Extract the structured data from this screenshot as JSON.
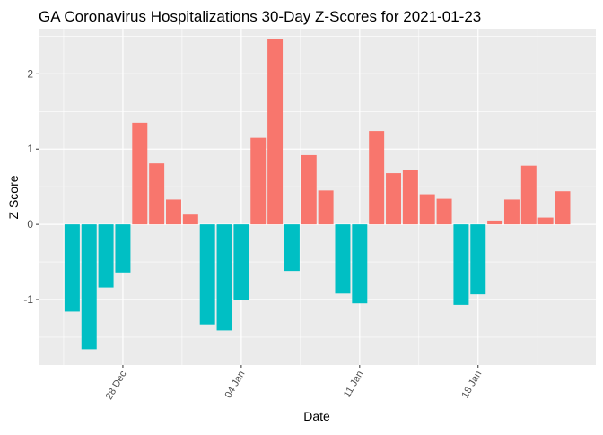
{
  "chart_data": {
    "type": "bar",
    "title": "GA Coronavirus Hospitalizations 30-Day Z-Scores for 2021-01-23",
    "xlabel": "Date",
    "ylabel": "Z Score",
    "ylim": [
      -1.87,
      2.6
    ],
    "yticks": [
      -1,
      0,
      1,
      2
    ],
    "ytick_labels": [
      "-1",
      "0",
      "1",
      "2"
    ],
    "xtick_labels": [
      "28 Dec",
      "04 Jan",
      "11 Jan",
      "18 Jan"
    ],
    "xtick_dates": [
      "2020-12-28",
      "2021-01-04",
      "2021-01-11",
      "2021-01-18"
    ],
    "grid": true,
    "legend": "none",
    "colors": {
      "positive": "#F8766D",
      "negative": "#00BFC4",
      "panel": "#EBEBEB",
      "grid": "#FFFFFF"
    },
    "start_date": "2020-12-25",
    "x": [
      "2020-12-25",
      "2020-12-26",
      "2020-12-27",
      "2020-12-28",
      "2020-12-29",
      "2020-12-30",
      "2020-12-31",
      "2021-01-01",
      "2021-01-02",
      "2021-01-03",
      "2021-01-04",
      "2021-01-05",
      "2021-01-06",
      "2021-01-07",
      "2021-01-08",
      "2021-01-09",
      "2021-01-10",
      "2021-01-11",
      "2021-01-12",
      "2021-01-13",
      "2021-01-14",
      "2021-01-15",
      "2021-01-16",
      "2021-01-17",
      "2021-01-18",
      "2021-01-19",
      "2021-01-20",
      "2021-01-21",
      "2021-01-22",
      "2021-01-23"
    ],
    "values": [
      -1.16,
      -1.66,
      -0.84,
      -0.64,
      1.35,
      0.81,
      0.33,
      0.13,
      -1.33,
      -1.41,
      -1.01,
      1.15,
      2.46,
      -0.62,
      0.92,
      0.45,
      -0.92,
      -1.05,
      1.24,
      0.68,
      0.72,
      0.4,
      0.34,
      -1.07,
      -0.93,
      0.05,
      0.33,
      0.78,
      0.09,
      0.44
    ]
  }
}
